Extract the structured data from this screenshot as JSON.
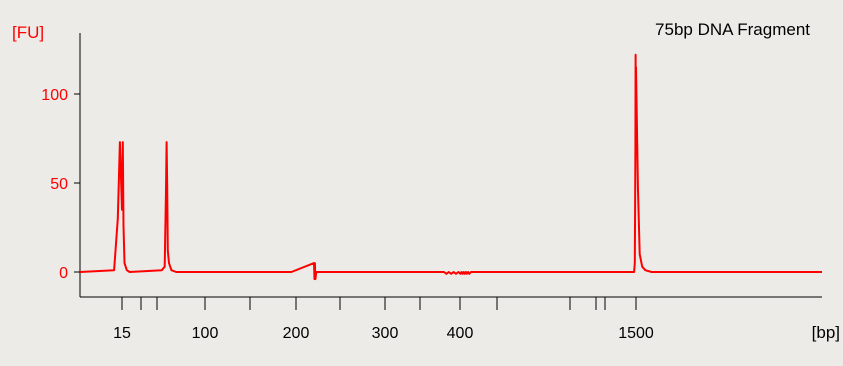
{
  "chart_data": {
    "type": "line",
    "title": "75bp DNA Fragment",
    "ylabel": "[FU]",
    "xlabel": "[bp]",
    "ylim": [
      -12,
      127
    ],
    "y_ticks": [
      0,
      50,
      100
    ],
    "x_tick_labels": [
      {
        "label": "15",
        "bp": 15
      },
      {
        "label": "100",
        "bp": 100
      },
      {
        "label": "200",
        "bp": 200
      },
      {
        "label": "300",
        "bp": 300
      },
      {
        "label": "400",
        "bp": 400
      },
      {
        "label": "1500",
        "bp": 1500
      }
    ],
    "x_minor_ticks_bp": [
      25,
      50,
      150,
      250,
      350,
      500,
      700,
      850,
      1000,
      1500
    ],
    "series": [
      {
        "color": "#ff0000",
        "x": [
          7,
          13.5,
          14.2,
          14.6,
          15,
          15.4,
          15.8,
          16.3,
          17.5,
          19,
          55,
          58,
          59.4,
          60,
          60.6,
          61.2,
          62.5,
          65,
          70,
          195,
          220.5,
          221,
          221.5,
          222,
          223,
          280,
          380,
          383,
          386,
          389,
          392,
          395,
          398,
          401,
          404,
          407,
          410,
          413,
          416,
          419,
          422,
          425,
          430,
          450,
          1400,
          1470,
          1480,
          1485,
          1490,
          1494,
          1497,
          1500,
          1503,
          1506,
          1510,
          1515,
          1525,
          1540,
          1800
        ],
        "y": [
          0,
          1,
          30,
          73,
          35,
          73,
          26,
          5,
          1,
          0,
          1,
          3,
          46,
          73,
          48,
          12,
          5,
          1,
          0,
          0,
          5,
          -4,
          5,
          -4,
          0,
          0,
          0,
          -1,
          0,
          -1,
          0,
          -1,
          0,
          -1,
          0,
          -1,
          0,
          -1,
          0,
          -1,
          0,
          -1,
          0,
          0,
          0,
          0,
          5,
          35,
          69,
          122,
          67,
          115,
          48,
          10,
          3,
          1,
          0,
          0,
          0
        ]
      }
    ]
  }
}
